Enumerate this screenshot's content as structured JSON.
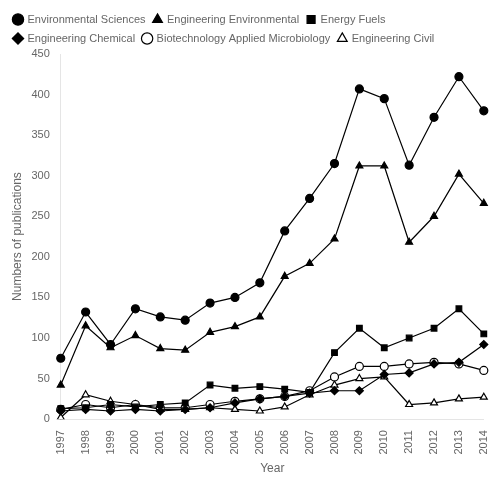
{
  "chart_data": {
    "type": "line",
    "categories": [
      "1997",
      "1998",
      "1999",
      "2000",
      "2001",
      "2002",
      "2003",
      "2004",
      "2005",
      "2006",
      "2007",
      "2008",
      "2009",
      "2010",
      "2011",
      "2012",
      "2013",
      "2014"
    ],
    "series": [
      {
        "name": "Environmental Sciences",
        "values": [
          75,
          132,
          92,
          136,
          126,
          122,
          143,
          150,
          168,
          232,
          272,
          315,
          407,
          395,
          313,
          372,
          422,
          380
        ],
        "marker": "circle"
      },
      {
        "name": "Engineering Environmental",
        "values": [
          42,
          115,
          88,
          103,
          87,
          85,
          107,
          114,
          126,
          176,
          192,
          222,
          312,
          312,
          218,
          250,
          302,
          266
        ],
        "marker": "triangle"
      },
      {
        "name": "Energy Fuels",
        "values": [
          13,
          14,
          18,
          15,
          18,
          20,
          42,
          38,
          40,
          37,
          33,
          82,
          112,
          88,
          100,
          112,
          136,
          105
        ],
        "marker": "square"
      },
      {
        "name": "Engineering Chemical",
        "values": [
          10,
          12,
          10,
          12,
          10,
          12,
          14,
          20,
          25,
          28,
          32,
          35,
          35,
          55,
          57,
          68,
          70,
          92
        ],
        "marker": "diamond"
      },
      {
        "name": "Biotechnology Applied Microbiology",
        "values": [
          12,
          18,
          14,
          18,
          14,
          14,
          18,
          22,
          25,
          28,
          35,
          52,
          65,
          65,
          68,
          70,
          68,
          60
        ],
        "marker": "circle-open"
      },
      {
        "name": "Engineering Civil",
        "values": [
          2,
          30,
          22,
          18,
          12,
          12,
          14,
          12,
          10,
          15,
          30,
          42,
          50,
          52,
          18,
          20,
          25,
          27
        ],
        "marker": "triangle-open"
      }
    ],
    "xlabel": "Year",
    "ylabel": "Numbers of publications",
    "ylim": [
      0,
      450
    ],
    "yticks": [
      0,
      50,
      100,
      150,
      200,
      250,
      300,
      350,
      400,
      450
    ],
    "color": "#000000",
    "line_style": "solid",
    "grid": false,
    "legend": "top-left"
  }
}
